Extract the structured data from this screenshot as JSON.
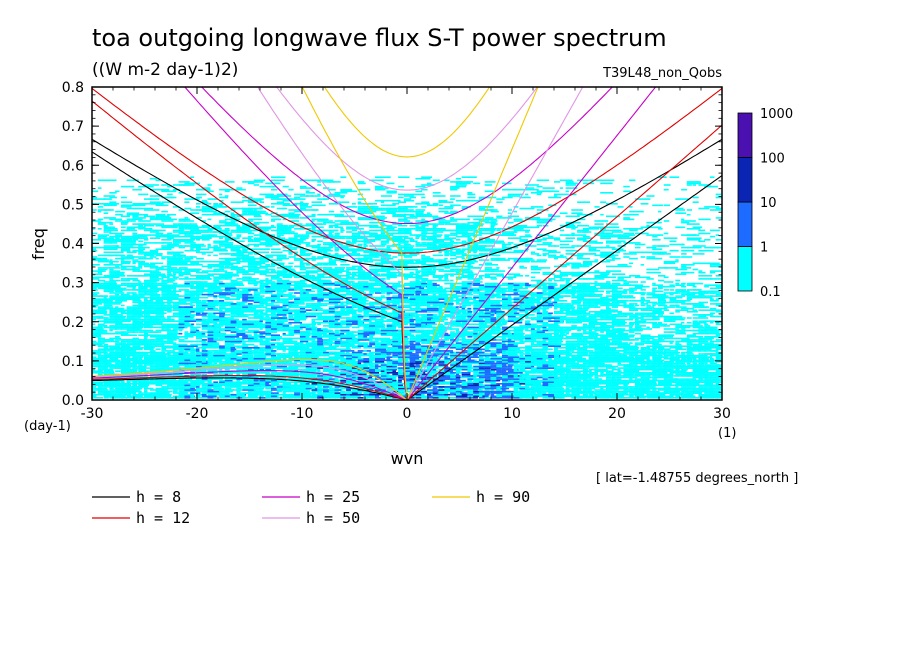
{
  "header": {
    "title": "toa outgoing longwave flux S-T power spectrum",
    "units": "((W m-2 day-1)2)",
    "experiment": "T39L48_non_Qobs",
    "lat_note": "[ lat=-1.48755 degrees_north ]",
    "y_unit_label": "(day-1)",
    "x_unit_label": "(1)"
  },
  "chart_data": {
    "type": "heatmap",
    "xlabel": "wvn",
    "ylabel": "freq",
    "xlim": [
      -30,
      30
    ],
    "ylim": [
      0,
      0.8
    ],
    "x_ticks": [
      -30,
      -20,
      -10,
      0,
      10,
      20,
      30
    ],
    "x_tick_labels": [
      "-30",
      "-20",
      "-10",
      "0",
      "10",
      "20",
      "30"
    ],
    "y_ticks": [
      0,
      0.1,
      0.2,
      0.3,
      0.4,
      0.5,
      0.6,
      0.7,
      0.8
    ],
    "y_tick_labels": [
      "0.0",
      "0.1",
      "0.2",
      "0.3",
      "0.4",
      "0.5",
      "0.6",
      "0.7",
      "0.8"
    ],
    "colorbar": {
      "levels": [
        "0.1",
        "1",
        "10",
        "100",
        "1000"
      ],
      "colors": [
        "#00ffff",
        "#1e6bff",
        "#0a24b4",
        "#4a10b0"
      ]
    },
    "dispersion_curves": [
      {
        "label": "h =  8",
        "h": 8,
        "color": "#000000"
      },
      {
        "label": "h = 12",
        "h": 12,
        "color": "#e00000"
      },
      {
        "label": "h = 25",
        "h": 25,
        "color": "#c800c8"
      },
      {
        "label": "h = 50",
        "h": 50,
        "color": "#e096e6"
      },
      {
        "label": "h = 90",
        "h": 90,
        "color": "#f0c800"
      }
    ],
    "grid": false,
    "legend_position": "bottom"
  }
}
